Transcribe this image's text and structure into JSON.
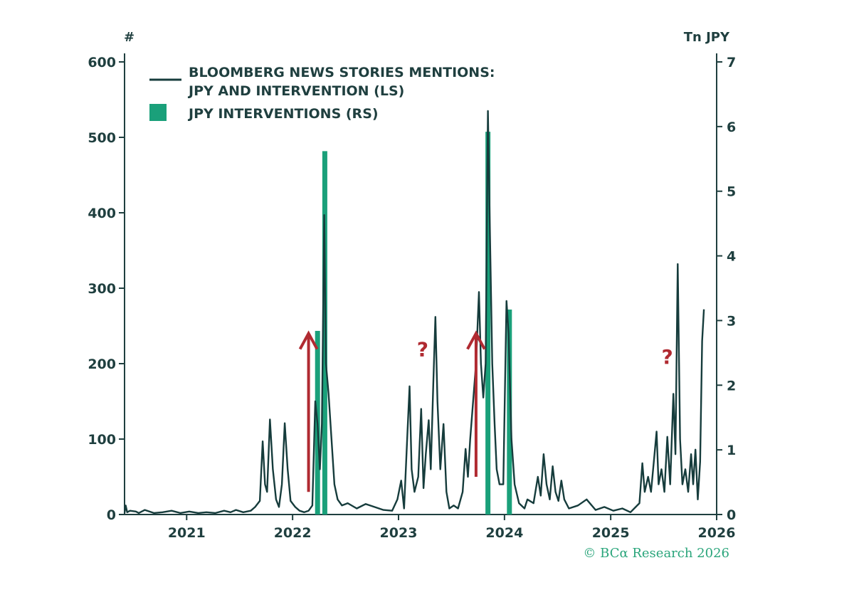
{
  "chart_data": {
    "type": "line+bar",
    "left_axis_unit": "#",
    "right_axis_unit": "Tn JPY",
    "left_ylim": [
      0,
      600
    ],
    "right_ylim": [
      0,
      7
    ],
    "left_ticks": [
      0,
      100,
      200,
      300,
      400,
      500,
      600
    ],
    "right_ticks": [
      0,
      1,
      2,
      3,
      4,
      5,
      6,
      7
    ],
    "x_ticks": [
      {
        "label": "2021",
        "date": "2021-01-01"
      },
      {
        "label": "2022",
        "date": "2022-01-01"
      },
      {
        "label": "2023",
        "date": "2023-01-01"
      },
      {
        "label": "2024",
        "date": "2024-01-01"
      },
      {
        "label": "2025",
        "date": "2025-01-01"
      },
      {
        "label": "2026",
        "date": "2026-01-01"
      }
    ],
    "xlim": [
      "2020-06-01",
      "2026-01-01"
    ],
    "legend": [
      {
        "label_line1": "BLOOMBERG NEWS STORIES MENTIONS:",
        "label_line2": "JPY AND INTERVENTION (LS)",
        "type": "line",
        "color": "#163c3c"
      },
      {
        "label_line1": "JPY INTERVENTIONS (RS)",
        "type": "bar",
        "color": "#1aa07a"
      }
    ],
    "series": [
      {
        "name": "BLOOMBERG NEWS STORIES MENTIONS: JPY AND INTERVENTION (LS)",
        "type": "line",
        "axis": "left",
        "color": "#163c3c",
        "points": [
          [
            "2020-06-01",
            2
          ],
          [
            "2020-06-05",
            12
          ],
          [
            "2020-06-10",
            3
          ],
          [
            "2020-06-20",
            5
          ],
          [
            "2020-07-10",
            4
          ],
          [
            "2020-07-20",
            2
          ],
          [
            "2020-08-10",
            6
          ],
          [
            "2020-09-10",
            2
          ],
          [
            "2020-10-10",
            3
          ],
          [
            "2020-11-10",
            5
          ],
          [
            "2020-12-10",
            2
          ],
          [
            "2021-01-10",
            4
          ],
          [
            "2021-02-10",
            2
          ],
          [
            "2021-03-10",
            3
          ],
          [
            "2021-04-10",
            2
          ],
          [
            "2021-05-10",
            5
          ],
          [
            "2021-06-01",
            3
          ],
          [
            "2021-06-20",
            6
          ],
          [
            "2021-07-15",
            3
          ],
          [
            "2021-08-10",
            5
          ],
          [
            "2021-08-25",
            10
          ],
          [
            "2021-09-10",
            18
          ],
          [
            "2021-09-20",
            97
          ],
          [
            "2021-09-28",
            40
          ],
          [
            "2021-10-05",
            30
          ],
          [
            "2021-10-15",
            126
          ],
          [
            "2021-10-25",
            60
          ],
          [
            "2021-11-05",
            20
          ],
          [
            "2021-11-15",
            10
          ],
          [
            "2021-11-25",
            40
          ],
          [
            "2021-12-05",
            121
          ],
          [
            "2021-12-15",
            60
          ],
          [
            "2021-12-25",
            18
          ],
          [
            "2022-01-10",
            10
          ],
          [
            "2022-01-25",
            5
          ],
          [
            "2022-02-10",
            3
          ],
          [
            "2022-02-25",
            5
          ],
          [
            "2022-03-10",
            12
          ],
          [
            "2022-03-20",
            150
          ],
          [
            "2022-03-28",
            120
          ],
          [
            "2022-04-05",
            60
          ],
          [
            "2022-04-12",
            120
          ],
          [
            "2022-04-20",
            397
          ],
          [
            "2022-04-26",
            200
          ],
          [
            "2022-05-05",
            160
          ],
          [
            "2022-05-15",
            100
          ],
          [
            "2022-05-25",
            40
          ],
          [
            "2022-06-05",
            20
          ],
          [
            "2022-06-20",
            12
          ],
          [
            "2022-07-10",
            15
          ],
          [
            "2022-08-10",
            8
          ],
          [
            "2022-09-10",
            14
          ],
          [
            "2022-10-10",
            10
          ],
          [
            "2022-11-10",
            6
          ],
          [
            "2022-12-10",
            5
          ],
          [
            "2022-12-28",
            20
          ],
          [
            "2023-01-10",
            45
          ],
          [
            "2023-01-20",
            8
          ],
          [
            "2023-02-01",
            110
          ],
          [
            "2023-02-08",
            170
          ],
          [
            "2023-02-15",
            60
          ],
          [
            "2023-02-25",
            30
          ],
          [
            "2023-03-10",
            50
          ],
          [
            "2023-03-20",
            140
          ],
          [
            "2023-03-28",
            35
          ],
          [
            "2023-04-05",
            80
          ],
          [
            "2023-04-15",
            125
          ],
          [
            "2023-04-22",
            60
          ],
          [
            "2023-05-01",
            175
          ],
          [
            "2023-05-08",
            262
          ],
          [
            "2023-05-15",
            150
          ],
          [
            "2023-05-25",
            60
          ],
          [
            "2023-06-05",
            120
          ],
          [
            "2023-06-15",
            30
          ],
          [
            "2023-06-25",
            8
          ],
          [
            "2023-07-10",
            12
          ],
          [
            "2023-07-25",
            8
          ],
          [
            "2023-08-10",
            30
          ],
          [
            "2023-08-20",
            87
          ],
          [
            "2023-08-28",
            50
          ],
          [
            "2023-09-05",
            100
          ],
          [
            "2023-09-15",
            150
          ],
          [
            "2023-09-25",
            200
          ],
          [
            "2023-10-05",
            295
          ],
          [
            "2023-10-12",
            200
          ],
          [
            "2023-10-20",
            155
          ],
          [
            "2023-10-28",
            200
          ],
          [
            "2023-11-05",
            535
          ],
          [
            "2023-11-12",
            370
          ],
          [
            "2023-11-20",
            200
          ],
          [
            "2023-11-28",
            120
          ],
          [
            "2023-12-05",
            60
          ],
          [
            "2023-12-15",
            40
          ],
          [
            "2023-12-28",
            40
          ],
          [
            "2024-01-08",
            283
          ],
          [
            "2024-01-15",
            240
          ],
          [
            "2024-01-25",
            100
          ],
          [
            "2024-02-05",
            40
          ],
          [
            "2024-02-20",
            15
          ],
          [
            "2024-03-10",
            8
          ],
          [
            "2024-03-20",
            20
          ],
          [
            "2024-04-10",
            15
          ],
          [
            "2024-04-25",
            50
          ],
          [
            "2024-05-05",
            25
          ],
          [
            "2024-05-15",
            80
          ],
          [
            "2024-05-25",
            40
          ],
          [
            "2024-06-05",
            20
          ],
          [
            "2024-06-15",
            64
          ],
          [
            "2024-06-25",
            30
          ],
          [
            "2024-07-05",
            18
          ],
          [
            "2024-07-15",
            45
          ],
          [
            "2024-07-25",
            20
          ],
          [
            "2024-08-10",
            8
          ],
          [
            "2024-09-10",
            12
          ],
          [
            "2024-10-10",
            20
          ],
          [
            "2024-11-10",
            6
          ],
          [
            "2024-12-10",
            10
          ],
          [
            "2025-01-10",
            5
          ],
          [
            "2025-02-10",
            8
          ],
          [
            "2025-03-10",
            3
          ],
          [
            "2025-04-10",
            15
          ],
          [
            "2025-04-20",
            68
          ],
          [
            "2025-04-28",
            30
          ],
          [
            "2025-05-10",
            50
          ],
          [
            "2025-05-20",
            30
          ],
          [
            "2025-06-01",
            80
          ],
          [
            "2025-06-08",
            110
          ],
          [
            "2025-06-15",
            40
          ],
          [
            "2025-06-25",
            60
          ],
          [
            "2025-07-05",
            30
          ],
          [
            "2025-07-15",
            103
          ],
          [
            "2025-07-25",
            40
          ],
          [
            "2025-08-05",
            160
          ],
          [
            "2025-08-12",
            80
          ],
          [
            "2025-08-20",
            332
          ],
          [
            "2025-08-28",
            100
          ],
          [
            "2025-09-05",
            40
          ],
          [
            "2025-09-15",
            60
          ],
          [
            "2025-09-25",
            30
          ],
          [
            "2025-10-05",
            80
          ],
          [
            "2025-10-12",
            40
          ],
          [
            "2025-10-20",
            86
          ],
          [
            "2025-10-28",
            20
          ],
          [
            "2025-11-05",
            70
          ],
          [
            "2025-11-12",
            230
          ],
          [
            "2025-11-18",
            272
          ]
        ]
      },
      {
        "name": "JPY INTERVENTIONS (RS)",
        "type": "bar",
        "axis": "right",
        "color": "#1aa07a",
        "points": [
          [
            "2022-03-28",
            2.84
          ],
          [
            "2022-04-22",
            5.62
          ],
          [
            "2023-11-05",
            5.92
          ],
          [
            "2024-01-18",
            3.17
          ]
        ]
      }
    ],
    "annotations": [
      {
        "type": "arrow",
        "date": "2022-02-25",
        "from": 30,
        "to": 240,
        "color": "#b02a31"
      },
      {
        "type": "arrow",
        "date": "2023-09-25",
        "from": 50,
        "to": 240,
        "color": "#b02a31"
      },
      {
        "type": "text",
        "text": "?",
        "date": "2023-03-25",
        "value": 210,
        "color": "#b02a31"
      },
      {
        "type": "text",
        "text": "?",
        "date": "2025-07-15",
        "value": 200,
        "color": "#b02a31"
      }
    ]
  },
  "source": "© BCα Research 2026"
}
